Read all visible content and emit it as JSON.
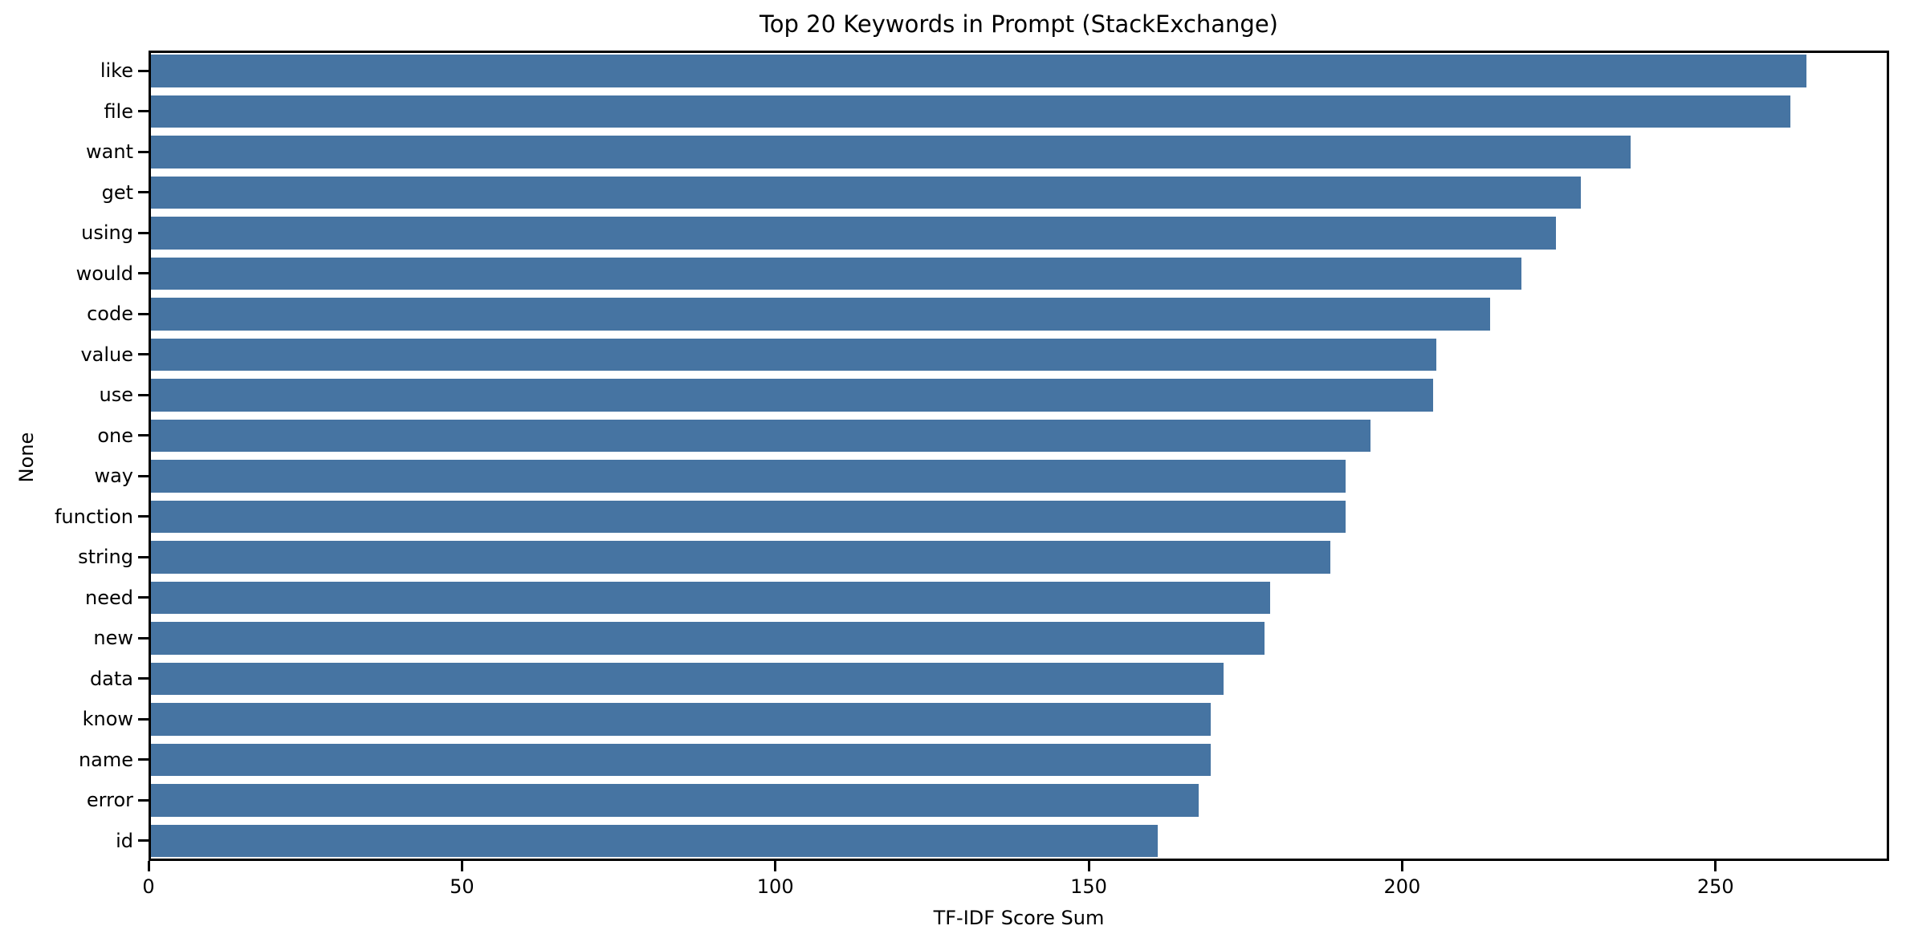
{
  "figure": {
    "background": "#ffffff",
    "text_color": "#000000"
  },
  "chart_data": {
    "type": "bar",
    "orientation": "horizontal",
    "title": "Top 20 Keywords in Prompt (StackExchange)",
    "xlabel": "TF-IDF Score Sum",
    "ylabel": "None",
    "categories": [
      "like",
      "file",
      "want",
      "get",
      "using",
      "would",
      "code",
      "value",
      "use",
      "one",
      "way",
      "function",
      "string",
      "need",
      "new",
      "data",
      "know",
      "name",
      "error",
      "id"
    ],
    "values": [
      264.5,
      262,
      236.5,
      228.5,
      224.5,
      219,
      214,
      205.5,
      205,
      195,
      191,
      191,
      188.5,
      179,
      178,
      171.5,
      169.5,
      169.5,
      167.5,
      161
    ],
    "x_ticks": [
      0,
      50,
      100,
      150,
      200,
      250
    ],
    "xlim": [
      0,
      277.7
    ],
    "bar_color": "#4674a2",
    "grid": false,
    "legend_position": "none"
  }
}
